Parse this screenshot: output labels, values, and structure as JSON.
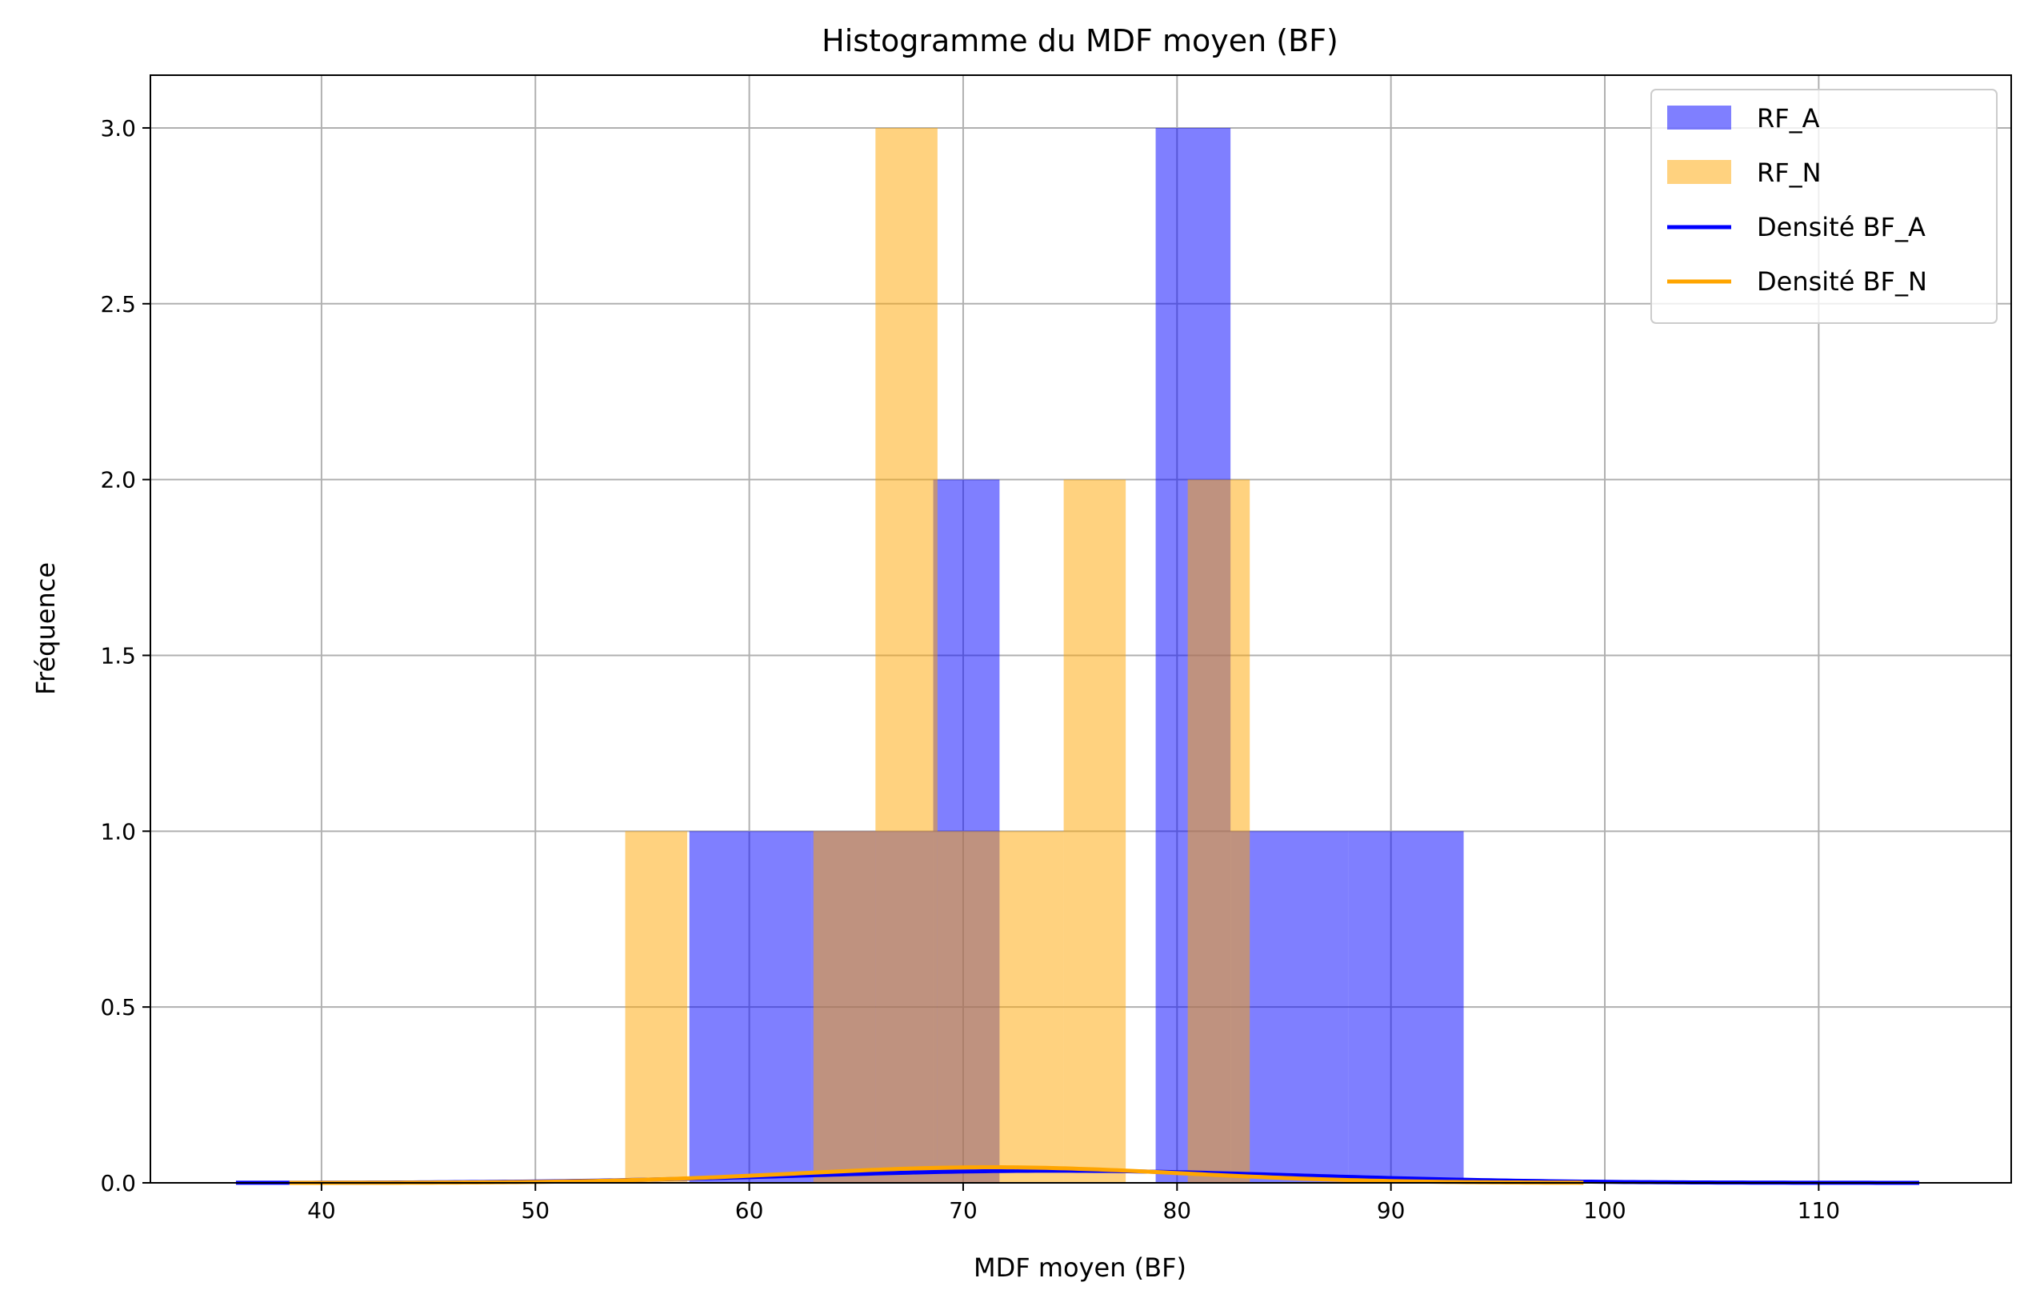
{
  "chart_data": {
    "type": "bar",
    "title": "Histogramme du MDF moyen (BF)",
    "xlabel": "MDF moyen (BF)",
    "ylabel": "Fréquence",
    "xlim": [
      32,
      119
    ],
    "ylim": [
      0,
      3.15
    ],
    "xticks": [
      40,
      50,
      60,
      70,
      80,
      90,
      100,
      110
    ],
    "yticks": [
      0.0,
      0.5,
      1.0,
      1.5,
      2.0,
      2.5,
      3.0
    ],
    "xtick_labels": [
      "40",
      "50",
      "60",
      "70",
      "80",
      "90",
      "100",
      "110"
    ],
    "ytick_labels": [
      "0.0",
      "0.5",
      "1.0",
      "1.5",
      "2.0",
      "2.5",
      "3.0"
    ],
    "grid": true,
    "legend_position": "top-right",
    "series": [
      {
        "name": "RF_A",
        "kind": "histogram",
        "color": "#0000ff",
        "opacity": 0.5,
        "bins": [
          {
            "x0": 57.2,
            "x1": 62.9,
            "count": 1
          },
          {
            "x0": 62.9,
            "x1": 68.6,
            "count": 1
          },
          {
            "x0": 68.6,
            "x1": 71.7,
            "count": 2
          },
          {
            "x0": 71.7,
            "x1": 79.0,
            "count": 0
          },
          {
            "x0": 79.0,
            "x1": 82.5,
            "count": 3
          },
          {
            "x0": 82.5,
            "x1": 88.0,
            "count": 1
          },
          {
            "x0": 88.0,
            "x1": 93.4,
            "count": 1
          }
        ]
      },
      {
        "name": "RF_N",
        "kind": "histogram",
        "color": "#ffa500",
        "opacity": 0.5,
        "bins": [
          {
            "x0": 54.2,
            "x1": 57.1,
            "count": 1
          },
          {
            "x0": 63.0,
            "x1": 65.9,
            "count": 1
          },
          {
            "x0": 65.9,
            "x1": 68.8,
            "count": 3
          },
          {
            "x0": 68.8,
            "x1": 71.7,
            "count": 1
          },
          {
            "x0": 71.7,
            "x1": 74.7,
            "count": 1
          },
          {
            "x0": 74.7,
            "x1": 77.6,
            "count": 2
          },
          {
            "x0": 80.5,
            "x1": 83.4,
            "count": 2
          }
        ]
      },
      {
        "name": "Densité BF_A",
        "kind": "density",
        "color": "#0000ff",
        "mean": 74.2,
        "sd": 11.6,
        "x_range": [
          36,
          114.7
        ]
      },
      {
        "name": "Densité BF_N",
        "kind": "density",
        "color": "#ffa500",
        "mean": 71.3,
        "sd": 9.0,
        "x_range": [
          38.5,
          99
        ]
      }
    ]
  }
}
